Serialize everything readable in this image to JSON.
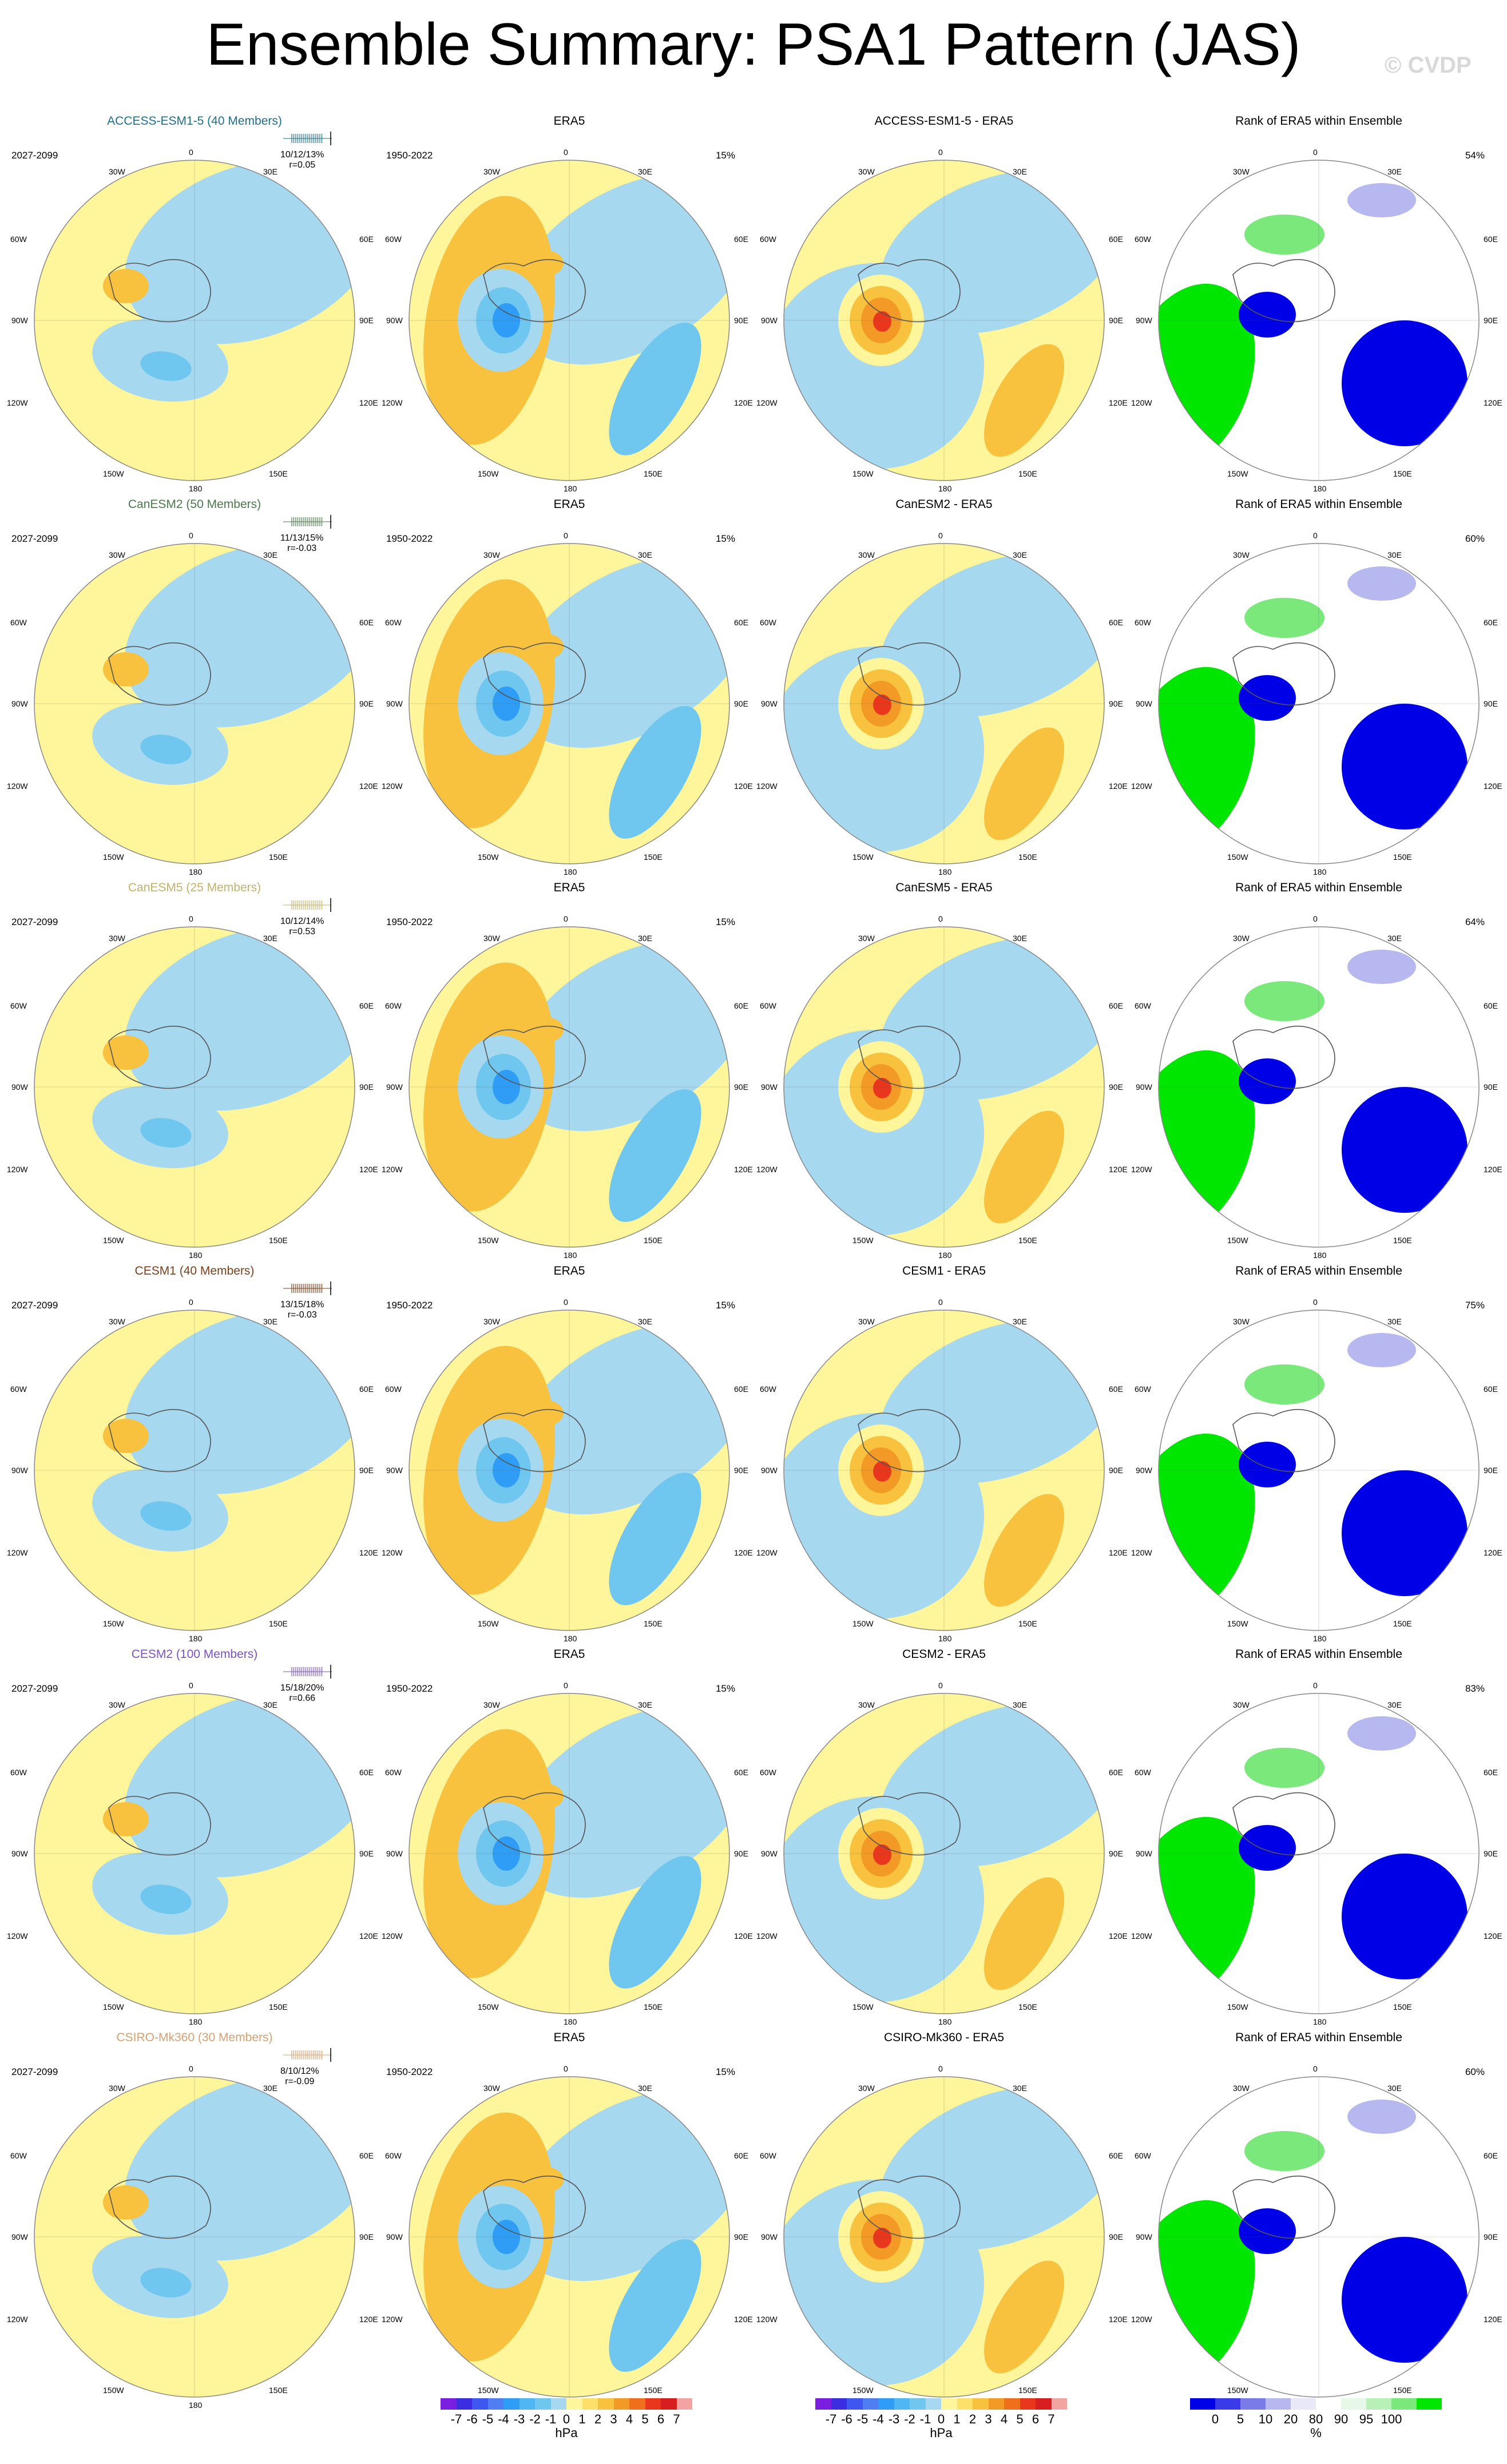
{
  "title": "Ensemble Summary: PSA1 Pattern (JAS)",
  "watermark": "© CVDP",
  "rows": [
    {
      "model_label": "ACCESS-ESM1-5 (40 Members)",
      "model_color": "#1f6f8b",
      "model_period": "2027-2099",
      "stats_line1": "10/12/13%",
      "stats_line2": "r=0.05",
      "era_title": "ERA5",
      "era_period": "1950-2022",
      "era_pct": "15%",
      "diff_title": "ACCESS-ESM1-5 - ERA5",
      "rank_title": "Rank of ERA5 within Ensemble",
      "rank_pct": "54%"
    },
    {
      "model_label": "CanESM2 (50 Members)",
      "model_color": "#4a7a4a",
      "model_period": "2027-2099",
      "stats_line1": "11/13/15%",
      "stats_line2": "r=-0.03",
      "era_title": "ERA5",
      "era_period": "1950-2022",
      "era_pct": "15%",
      "diff_title": "CanESM2 - ERA5",
      "rank_title": "Rank of ERA5 within Ensemble",
      "rank_pct": "60%"
    },
    {
      "model_label": "CanESM5 (25 Members)",
      "model_color": "#c2b26a",
      "model_period": "2027-2099",
      "stats_line1": "10/12/14%",
      "stats_line2": "r=0.53",
      "era_title": "ERA5",
      "era_period": "1950-2022",
      "era_pct": "15%",
      "diff_title": "CanESM5 - ERA5",
      "rank_title": "Rank of ERA5 within Ensemble",
      "rank_pct": "64%"
    },
    {
      "model_label": "CESM1 (40 Members)",
      "model_color": "#7b3f1a",
      "model_period": "2027-2099",
      "stats_line1": "13/15/18%",
      "stats_line2": "r=-0.03",
      "era_title": "ERA5",
      "era_period": "1950-2022",
      "era_pct": "15%",
      "diff_title": "CESM1 - ERA5",
      "rank_title": "Rank of ERA5 within Ensemble",
      "rank_pct": "75%"
    },
    {
      "model_label": "CESM2 (100 Members)",
      "model_color": "#7b52c7",
      "model_period": "2027-2099",
      "stats_line1": "15/18/20%",
      "stats_line2": "r=0.66",
      "era_title": "ERA5",
      "era_period": "1950-2022",
      "era_pct": "15%",
      "diff_title": "CESM2 - ERA5",
      "rank_title": "Rank of ERA5 within Ensemble",
      "rank_pct": "83%"
    },
    {
      "model_label": "CSIRO-Mk360 (30 Members)",
      "model_color": "#d8a070",
      "model_period": "2027-2099",
      "stats_line1": "8/10/12%",
      "stats_line2": "r=-0.09",
      "era_title": "ERA5",
      "era_period": "1950-2022",
      "era_pct": "15%",
      "diff_title": "CSIRO-Mk360 - ERA5",
      "rank_title": "Rank of ERA5 within Ensemble",
      "rank_pct": "60%"
    }
  ],
  "map_labels": {
    "top": "0",
    "bottom": "180",
    "left_mid": "90W",
    "right_mid": "90E",
    "upper_left": "30W",
    "upper_right": "30E",
    "left_upper": "60W",
    "right_upper": "60E",
    "left_lower": "120W",
    "right_lower": "120E",
    "lower_left": "150W",
    "lower_right": "150E"
  },
  "colorbar_hpa": {
    "ticks": [
      "-7",
      "-6",
      "-5",
      "-4",
      "-3",
      "-2",
      "-1",
      "0",
      "1",
      "2",
      "3",
      "4",
      "5",
      "6",
      "7"
    ],
    "unit": "hPa",
    "colors": [
      "#7a1fe0",
      "#3b2ee0",
      "#3f57ee",
      "#4f7df2",
      "#2f9df5",
      "#4fb7f2",
      "#6fc6ee",
      "#a6d8f0",
      "#fff59a",
      "#fde06a",
      "#f8c23e",
      "#f39a26",
      "#ee6f1c",
      "#e8371c",
      "#d81f1f",
      "#f4a3a3"
    ]
  },
  "colorbar_rank": {
    "ticks": [
      "0",
      "5",
      "10",
      "20",
      "80",
      "90",
      "95",
      "100"
    ],
    "unit": "%",
    "colors": [
      "#0000e6",
      "#3a3ae8",
      "#7a7ae8",
      "#b8b8f0",
      "#e8e8f8",
      "#ffffff",
      "#e8f8e8",
      "#b8f0b8",
      "#7ae87a",
      "#00e600"
    ]
  },
  "colors": {
    "neg_light": "#a6d8f0",
    "pos_light": "#fff59a"
  }
}
